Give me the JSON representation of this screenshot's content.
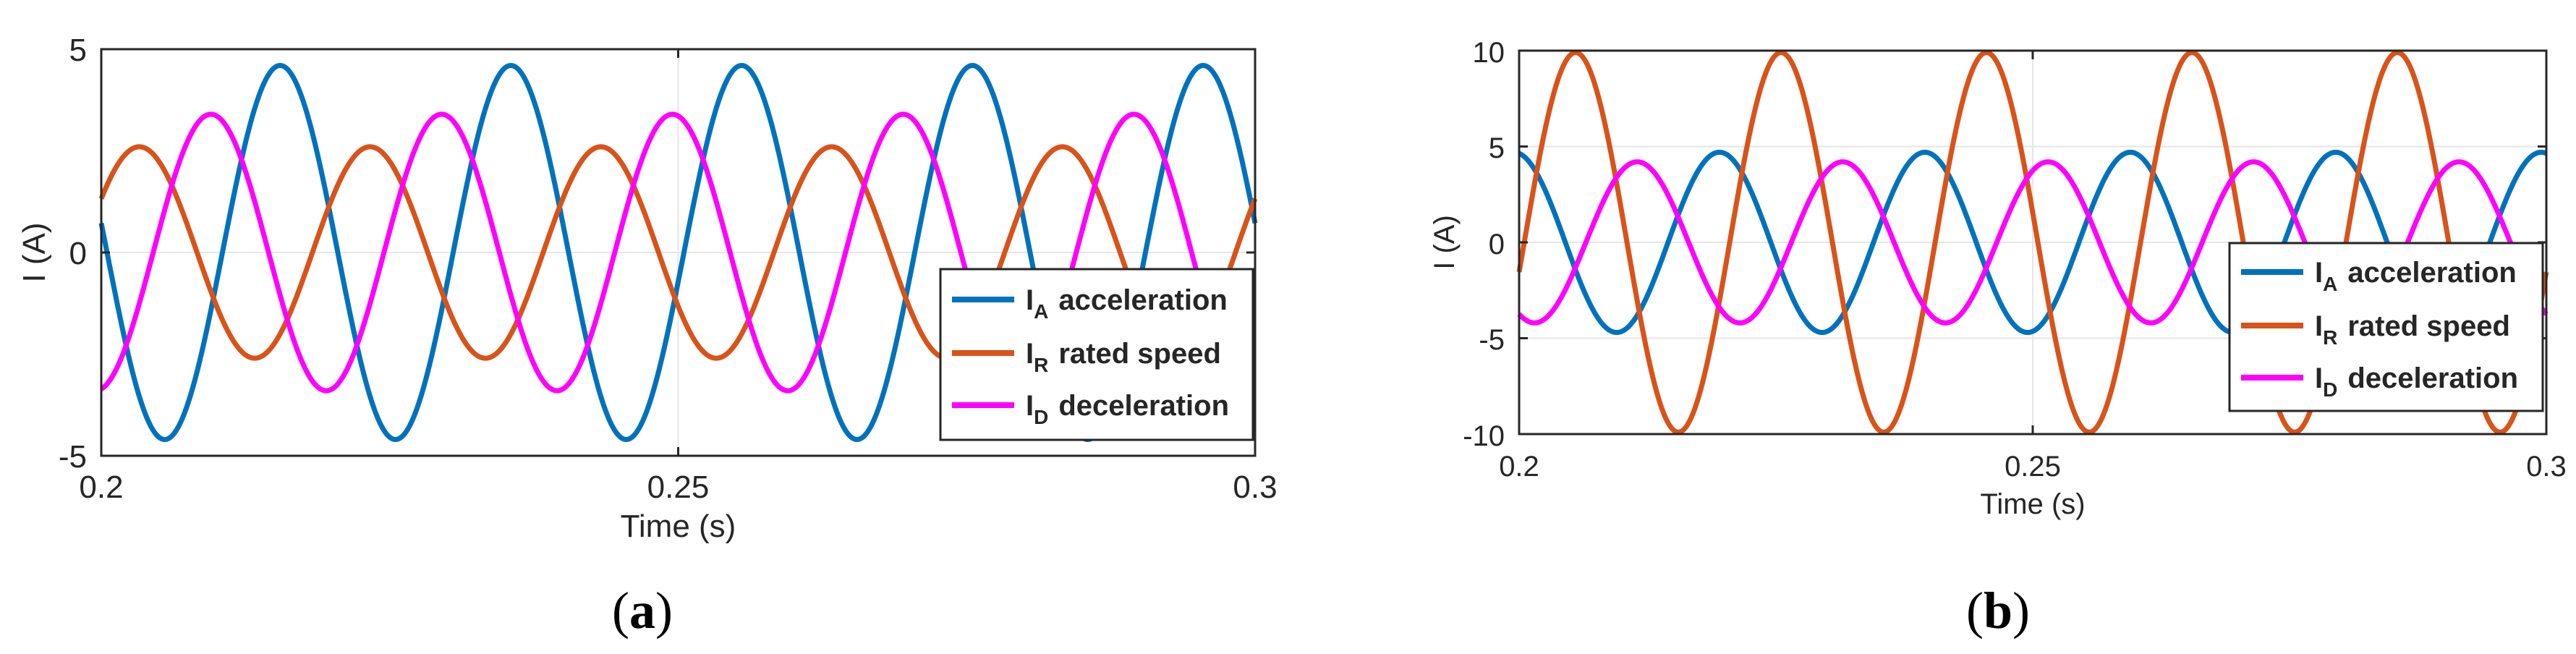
{
  "colors": {
    "acceleration": "#0072BD",
    "rated_speed": "#D95319",
    "deceleration": "#FF00FF",
    "grid": "#e6e6e6",
    "axes": "#262626",
    "text": "#262626"
  },
  "chart_data": [
    {
      "type": "line",
      "caption": "(a)",
      "caption_parts": {
        "open": "(",
        "letter": "a",
        "close": ")"
      },
      "xlabel": "Time (s)",
      "ylabel": "I (A)",
      "xlim": [
        0.2,
        0.3
      ],
      "ylim": [
        -5,
        5
      ],
      "x_ticks": [
        0.2,
        0.25,
        0.3
      ],
      "y_ticks": [
        -5,
        0,
        5
      ],
      "x_tick_labels": [
        "0.2",
        "0.25",
        "0.3"
      ],
      "y_tick_labels": [
        "-5",
        "0",
        "5"
      ],
      "grid": true,
      "legend_position": "bottom-right",
      "series": [
        {
          "name": "I_A acceleration",
          "label_sym": "I",
          "label_sub": "A",
          "label_text": "acceleration",
          "color_key": "acceleration",
          "waveform": {
            "amplitude": 4.6,
            "frequency_hz": 50.0,
            "peak_times_s": [
              0.2155,
              0.2355,
              0.2555,
              0.2755,
              0.2955
            ]
          }
        },
        {
          "name": "I_R rated speed",
          "label_sym": "I",
          "label_sub": "R",
          "label_text": "rated speed",
          "color_key": "rated_speed",
          "waveform": {
            "amplitude": 2.6,
            "frequency_hz": 50.0,
            "peak_times_s": [
              0.2033,
              0.2233,
              0.2433,
              0.2633,
              0.2833
            ]
          }
        },
        {
          "name": "I_D deceleration",
          "label_sym": "I",
          "label_sub": "D",
          "label_text": "deceleration",
          "color_key": "deceleration",
          "waveform": {
            "amplitude": 3.4,
            "frequency_hz": 50.0,
            "peak_times_s": [
              0.2095,
              0.2295,
              0.2495,
              0.2695,
              0.2895
            ]
          }
        }
      ]
    },
    {
      "type": "line",
      "caption": "(b)",
      "caption_parts": {
        "open": "(",
        "letter": "b",
        "close": ")"
      },
      "xlabel": "Time (s)",
      "ylabel": "I (A)",
      "xlim": [
        0.2,
        0.3
      ],
      "ylim": [
        -10,
        10
      ],
      "x_ticks": [
        0.2,
        0.25,
        0.3
      ],
      "y_ticks": [
        -10,
        -5,
        0,
        5,
        10
      ],
      "x_tick_labels": [
        "0.2",
        "0.25",
        "0.3"
      ],
      "y_tick_labels": [
        "-10",
        "-5",
        "0",
        "5",
        "10"
      ],
      "grid": true,
      "legend_position": "bottom-right",
      "series": [
        {
          "name": "I_A acceleration",
          "label_sym": "I",
          "label_sub": "A",
          "label_text": "acceleration",
          "color_key": "acceleration",
          "waveform": {
            "amplitude": 4.7,
            "frequency_hz": 50.0,
            "peak_times_s": [
              0.2195,
              0.2395,
              0.2595,
              0.2795,
              0.2995
            ]
          }
        },
        {
          "name": "I_R rated speed",
          "label_sym": "I",
          "label_sub": "R",
          "label_text": "rated speed",
          "color_key": "rated_speed",
          "waveform": {
            "amplitude": 9.9,
            "frequency_hz": 50.0,
            "peak_times_s": [
              0.2055,
              0.2255,
              0.2455,
              0.2655,
              0.2855
            ]
          }
        },
        {
          "name": "I_D deceleration",
          "label_sym": "I",
          "label_sub": "D",
          "label_text": "deceleration",
          "color_key": "deceleration",
          "waveform": {
            "amplitude": 4.2,
            "frequency_hz": 50.0,
            "peak_times_s": [
              0.2115,
              0.2315,
              0.2515,
              0.2715,
              0.2915
            ]
          }
        }
      ]
    }
  ]
}
